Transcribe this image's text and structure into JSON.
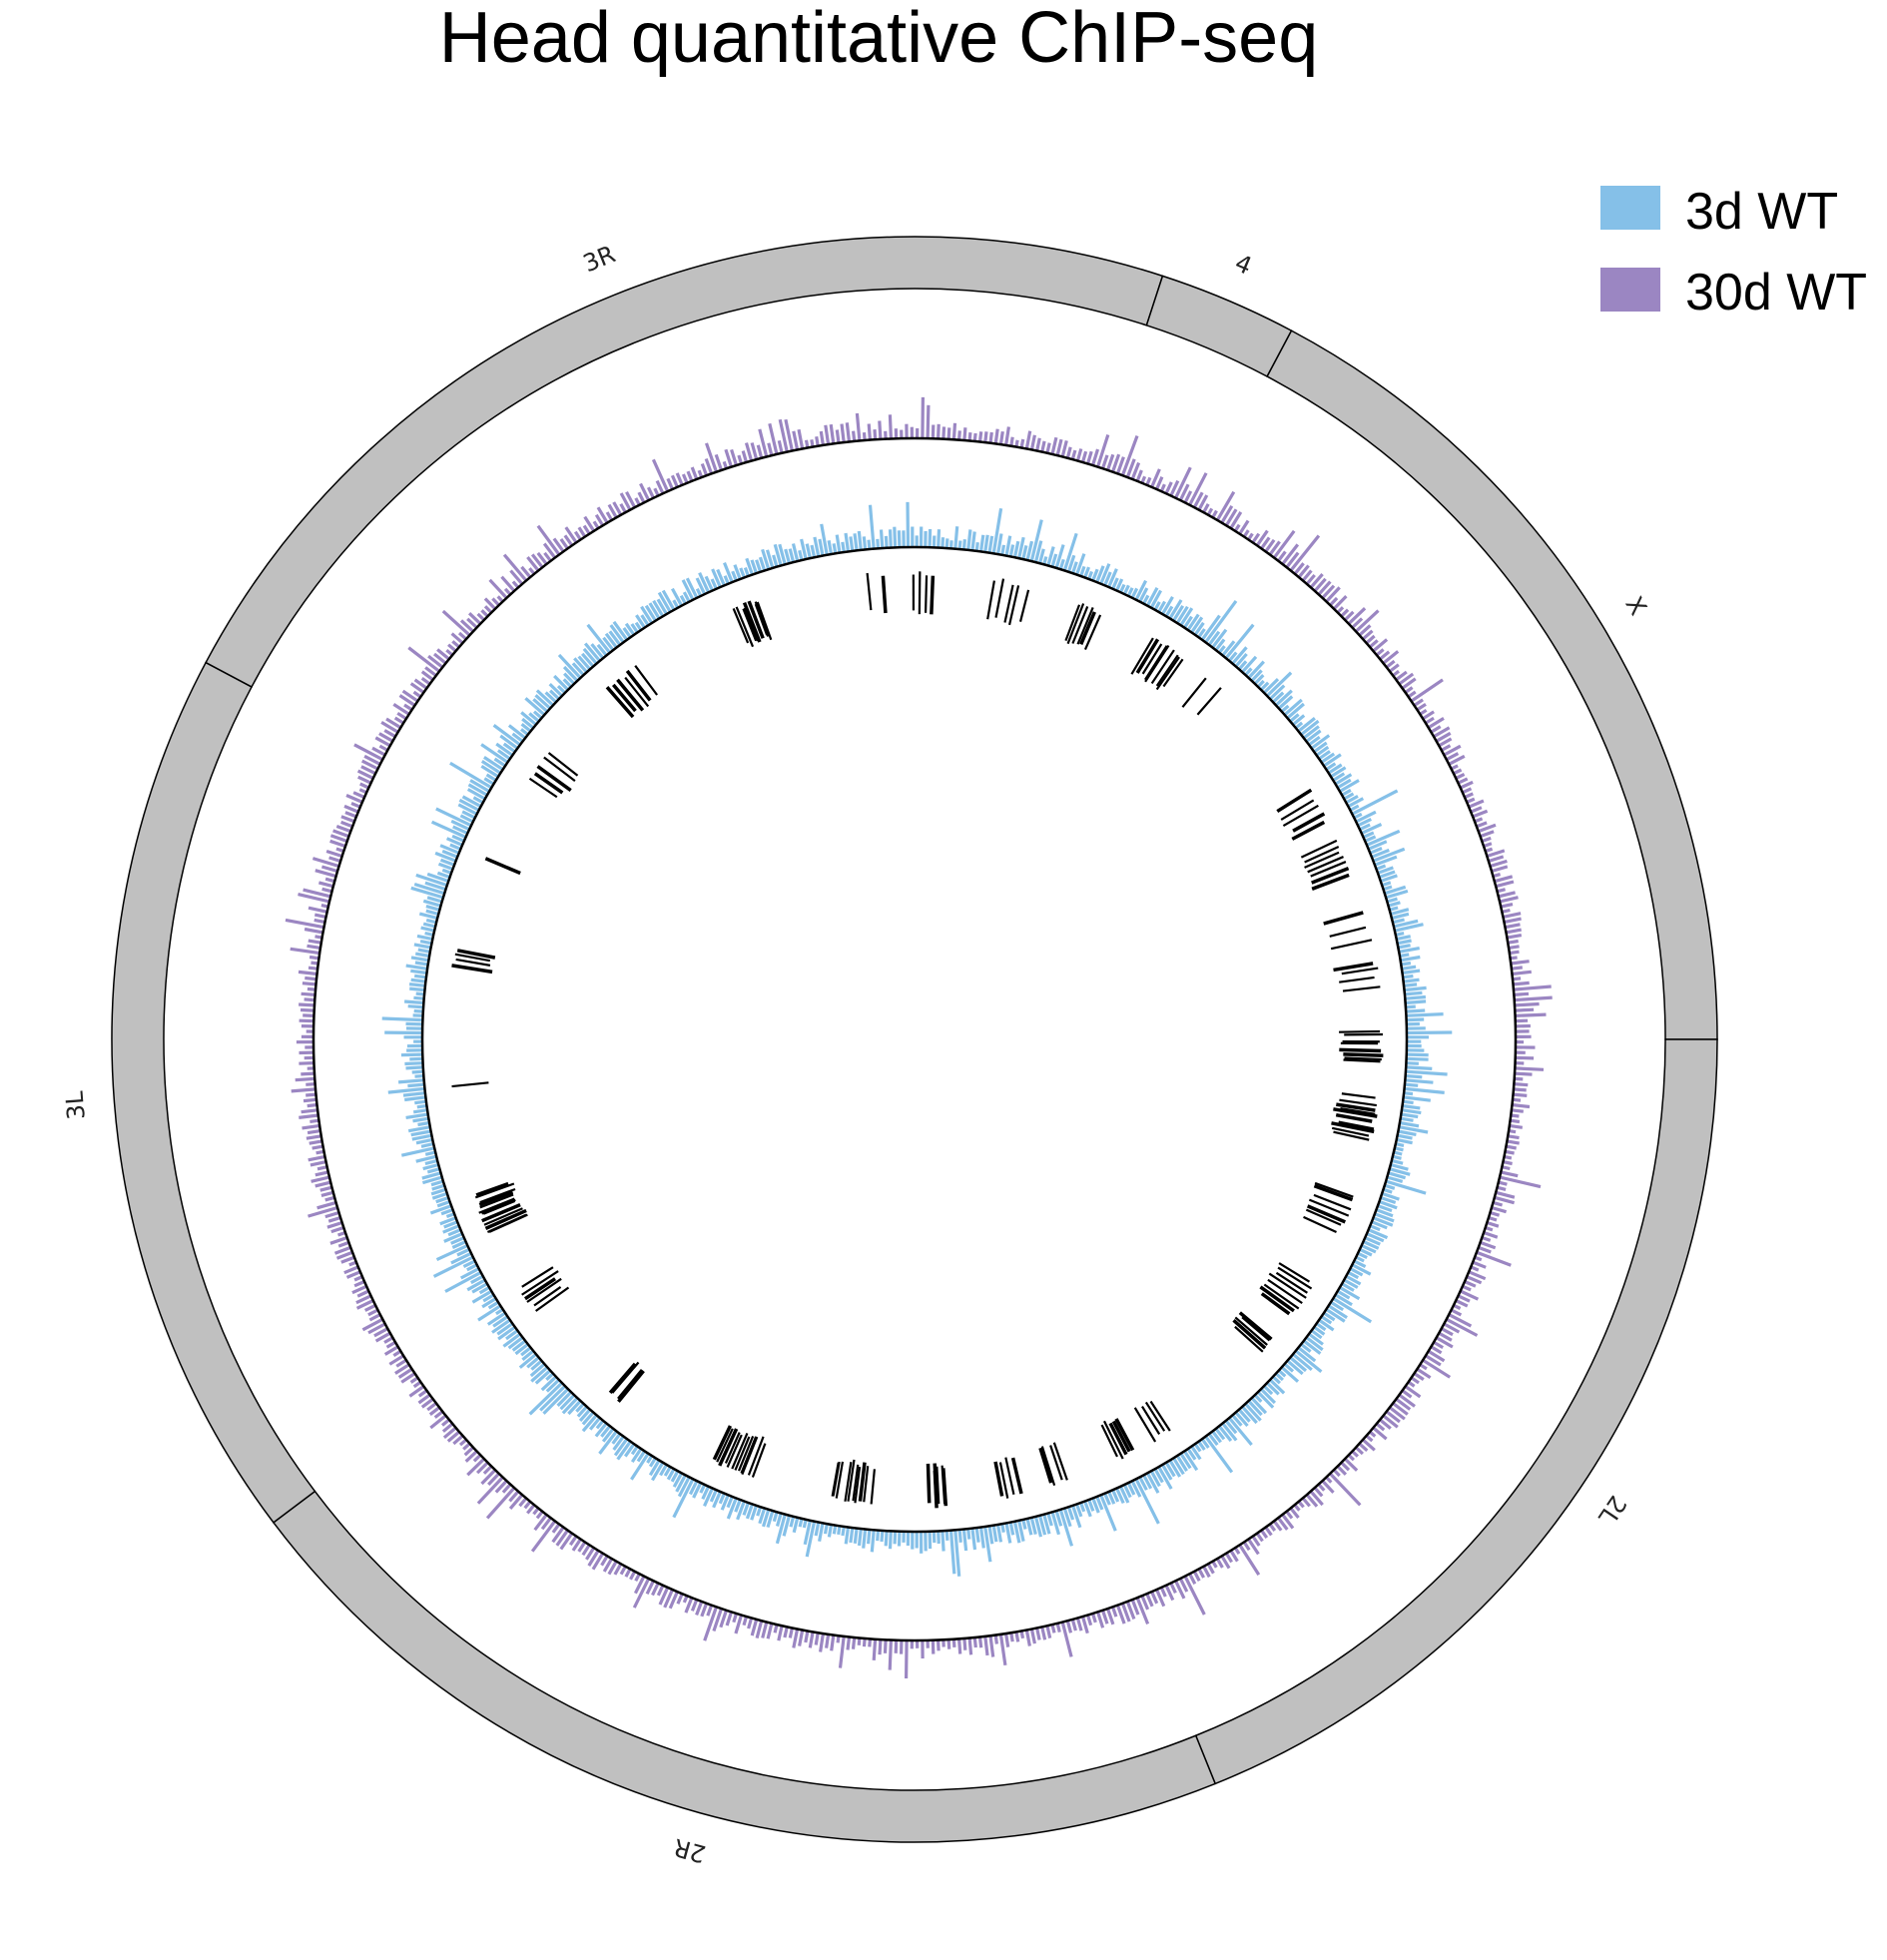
{
  "chart_data": {
    "type": "circos",
    "title": "Head quantitative ChIP-seq",
    "legend": {
      "placement": "top-right",
      "entries": [
        {
          "label": "3d WT",
          "color": "#85c0e8"
        },
        {
          "label": "30d WT",
          "color": "#9b86c2"
        }
      ]
    },
    "ideogram": {
      "fill": "#c0c0c0",
      "chromosomes": [
        {
          "name": "X",
          "start_deg": 28,
          "end_deg": 90
        },
        {
          "name": "2L",
          "start_deg": 90,
          "end_deg": 158
        },
        {
          "name": "2R",
          "start_deg": 158,
          "end_deg": 233
        },
        {
          "name": "3L",
          "start_deg": 233,
          "end_deg": 298
        },
        {
          "name": "3R",
          "start_deg": 298,
          "end_deg": 378
        },
        {
          "name": "4",
          "start_deg": 378,
          "end_deg": 388
        }
      ]
    },
    "series": [
      {
        "name": "30d WT",
        "color": "#9b86c2",
        "track": "outer",
        "n_bins": 720,
        "relative_signal": [
          0,
          1
        ],
        "seed": 7
      },
      {
        "name": "3d WT",
        "color": "#85c0e8",
        "track": "inner",
        "n_bins": 720,
        "relative_signal": [
          0,
          1
        ],
        "seed": 13
      }
    ],
    "peak_marks": {
      "color": "#000000",
      "clusters_deg": [
        [
          12,
          4,
          5
        ],
        [
          22,
          3,
          6
        ],
        [
          33,
          5,
          9
        ],
        [
          40,
          2,
          2
        ],
        [
          60,
          4,
          5
        ],
        [
          67,
          4,
          7
        ],
        [
          76,
          3,
          3
        ],
        [
          82,
          3,
          4
        ],
        [
          91,
          4,
          8
        ],
        [
          100,
          5,
          10
        ],
        [
          112,
          5,
          7
        ],
        [
          124,
          5,
          8
        ],
        [
          131,
          2,
          5
        ],
        [
          148,
          2,
          4
        ],
        [
          153,
          2,
          5
        ],
        [
          162,
          2,
          4
        ],
        [
          168,
          2,
          4
        ],
        [
          177,
          2,
          6
        ],
        [
          188,
          5,
          10
        ],
        [
          203,
          5,
          12
        ],
        [
          220,
          2,
          4
        ],
        [
          236,
          3,
          6
        ],
        [
          248,
          5,
          14
        ],
        [
          264,
          1,
          1
        ],
        [
          280,
          2,
          4
        ],
        [
          293,
          2,
          1
        ],
        [
          306,
          4,
          5
        ],
        [
          321,
          4,
          6
        ],
        [
          339,
          3,
          10
        ],
        [
          355,
          2,
          2
        ],
        [
          361,
          2,
          4
        ]
      ]
    }
  }
}
